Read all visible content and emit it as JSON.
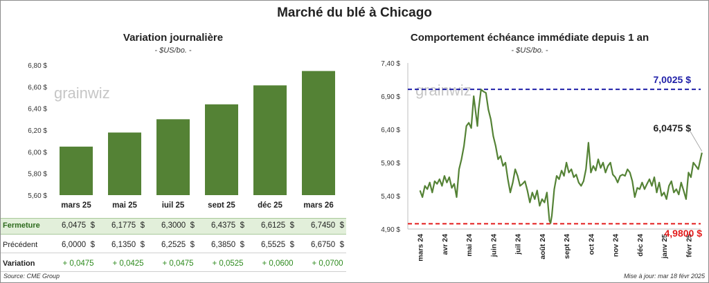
{
  "page": {
    "title": "Marché du blé à Chicago",
    "source": "Source: CME Group",
    "updated": "Mise à jour: mar 18 févr 2025",
    "watermark": "grainwiz"
  },
  "left_chart": {
    "title": "Variation journalière",
    "unit": "- $US/bo. -"
  },
  "right_chart": {
    "title": "Comportement échéance immédiate depuis 1 an",
    "unit": "- $US/bo. -",
    "high_label": "7,0025 $",
    "low_label": "4,9800 $",
    "last_label": "6,0475 $"
  },
  "table": {
    "rows": [
      {
        "label": "Fermeture",
        "values": [
          "6,0475  $",
          "6,1775  $",
          "6,3000  $",
          "6,4375  $",
          "6,6125  $",
          "6,7450  $"
        ]
      },
      {
        "label": "Précédent",
        "values": [
          "6,0000  $",
          "6,1350  $",
          "6,2525  $",
          "6,3850  $",
          "6,5525  $",
          "6,6750  $"
        ]
      },
      {
        "label": "Variation",
        "values": [
          "+ 0,0475",
          "+ 0,0425",
          "+ 0,0475",
          "+ 0,0525",
          "+ 0,0600",
          "+ 0,0700"
        ]
      }
    ]
  },
  "colors": {
    "bar": "#548235",
    "line": "#548235",
    "high": "#1f1fa8",
    "low": "#e31b1b",
    "fermeture_bg": "#e2efda",
    "variation_text": "#2e8b1e"
  },
  "chart_data": [
    {
      "type": "bar",
      "title": "Variation journalière",
      "ylabel": "- $US/bo. -",
      "categories": [
        "mars 25",
        "mai 25",
        "juil 25",
        "sept 25",
        "déc 25",
        "mars 26"
      ],
      "values": [
        6.0475,
        6.1775,
        6.3,
        6.4375,
        6.6125,
        6.745
      ],
      "ylim": [
        5.6,
        6.8
      ],
      "yticks": [
        "5,60 $",
        "5,80 $",
        "6,00 $",
        "6,20 $",
        "6,40 $",
        "6,60 $",
        "6,80 $"
      ],
      "grid": false
    },
    {
      "type": "line",
      "title": "Comportement échéance immédiate depuis 1 an",
      "ylabel": "- $US/bo. -",
      "ylim": [
        4.9,
        7.4
      ],
      "yticks": [
        "4,90 $",
        "5,40 $",
        "5,90 $",
        "6,40 $",
        "6,90 $",
        "7,40 $"
      ],
      "xticks": [
        "mars 24",
        "avr 24",
        "mai 24",
        "juin 24",
        "juil 24",
        "août 24",
        "sept 24",
        "oct 24",
        "nov 24",
        "déc 24",
        "janv 25",
        "févr 25"
      ],
      "grid": false,
      "reference_lines": [
        {
          "label": "7,0025 $",
          "value": 7.0025
        },
        {
          "label": "4,9800 $",
          "value": 4.98
        }
      ],
      "series": [
        {
          "x": [
            0,
            0.1,
            0.2,
            0.3,
            0.4,
            0.5,
            0.6,
            0.7,
            0.8,
            0.9,
            1.0,
            1.1,
            1.2,
            1.3,
            1.4,
            1.5,
            1.6,
            1.7,
            1.8,
            1.9,
            2.0,
            2.1,
            2.2,
            2.3,
            2.35,
            2.4,
            2.5,
            2.6,
            2.7,
            2.8,
            2.9,
            3.0,
            3.1,
            3.2,
            3.3,
            3.4,
            3.5,
            3.6,
            3.7,
            3.8,
            3.9,
            4.0,
            4.1,
            4.2,
            4.3,
            4.4,
            4.5,
            4.6,
            4.7,
            4.8,
            4.9,
            5.0,
            5.1,
            5.2,
            5.3,
            5.35,
            5.4,
            5.5,
            5.6,
            5.7,
            5.8,
            5.9,
            6.0,
            6.1,
            6.2,
            6.3,
            6.4,
            6.5,
            6.6,
            6.7,
            6.8,
            6.9,
            7.0,
            7.1,
            7.2,
            7.3,
            7.4,
            7.5,
            7.6,
            7.7,
            7.8,
            7.9,
            8.0,
            8.1,
            8.2,
            8.3,
            8.4,
            8.5,
            8.6,
            8.7,
            8.8,
            8.9,
            9.0,
            9.1,
            9.2,
            9.3,
            9.4,
            9.5,
            9.6,
            9.7,
            9.8,
            9.9,
            10.0,
            10.1,
            10.2,
            10.3,
            10.4,
            10.5,
            10.6,
            10.7,
            10.8,
            10.9,
            11.0,
            11.1,
            11.2,
            11.3,
            11.4,
            11.55
          ],
          "values": [
            5.48,
            5.38,
            5.55,
            5.5,
            5.6,
            5.45,
            5.62,
            5.58,
            5.65,
            5.55,
            5.7,
            5.6,
            5.68,
            5.52,
            5.58,
            5.38,
            5.8,
            5.95,
            6.15,
            6.45,
            6.5,
            6.42,
            6.9,
            6.6,
            6.45,
            6.7,
            7.0,
            6.97,
            6.95,
            6.7,
            6.55,
            6.3,
            6.15,
            5.95,
            6.0,
            5.85,
            5.9,
            5.65,
            5.45,
            5.6,
            5.8,
            5.7,
            5.55,
            5.58,
            5.62,
            5.48,
            5.3,
            5.45,
            5.35,
            5.48,
            5.25,
            5.35,
            5.3,
            5.45,
            5.03,
            4.99,
            5.1,
            5.5,
            5.7,
            5.65,
            5.78,
            5.7,
            5.9,
            5.75,
            5.8,
            5.68,
            5.72,
            5.6,
            5.55,
            5.62,
            5.8,
            6.2,
            5.75,
            5.85,
            5.78,
            5.95,
            5.82,
            5.9,
            5.75,
            5.85,
            5.9,
            5.72,
            5.68,
            5.6,
            5.7,
            5.72,
            5.7,
            5.8,
            5.75,
            5.62,
            5.38,
            5.52,
            5.5,
            5.6,
            5.5,
            5.58,
            5.65,
            5.55,
            5.68,
            5.45,
            5.6,
            5.4,
            5.45,
            5.35,
            5.55,
            5.62,
            5.45,
            5.5,
            5.42,
            5.6,
            5.48,
            5.35,
            5.75,
            5.68,
            5.9,
            5.85,
            5.8,
            6.05
          ]
        }
      ]
    }
  ]
}
